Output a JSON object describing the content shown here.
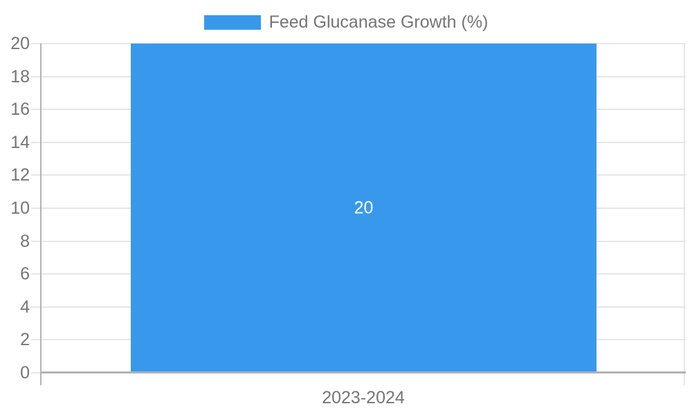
{
  "chart_data": {
    "type": "bar",
    "categories": [
      "2023-2024"
    ],
    "series": [
      {
        "name": "Feed Glucanase Growth (%)",
        "values": [
          20
        ]
      }
    ],
    "bar_labels": [
      "20"
    ],
    "title": "",
    "xlabel": "",
    "ylabel": "",
    "ylim": [
      0,
      20
    ],
    "yticks": [
      0,
      2,
      4,
      6,
      8,
      10,
      12,
      14,
      16,
      18,
      20
    ],
    "grid": true,
    "legend_position": "top",
    "colors": {
      "bar": "#3899ec",
      "bar_label": "#ffffff",
      "axis_text": "#757575",
      "gridline": "#e6e6e6",
      "baseline": "#b3b3b3",
      "background": "#ffffff"
    }
  }
}
